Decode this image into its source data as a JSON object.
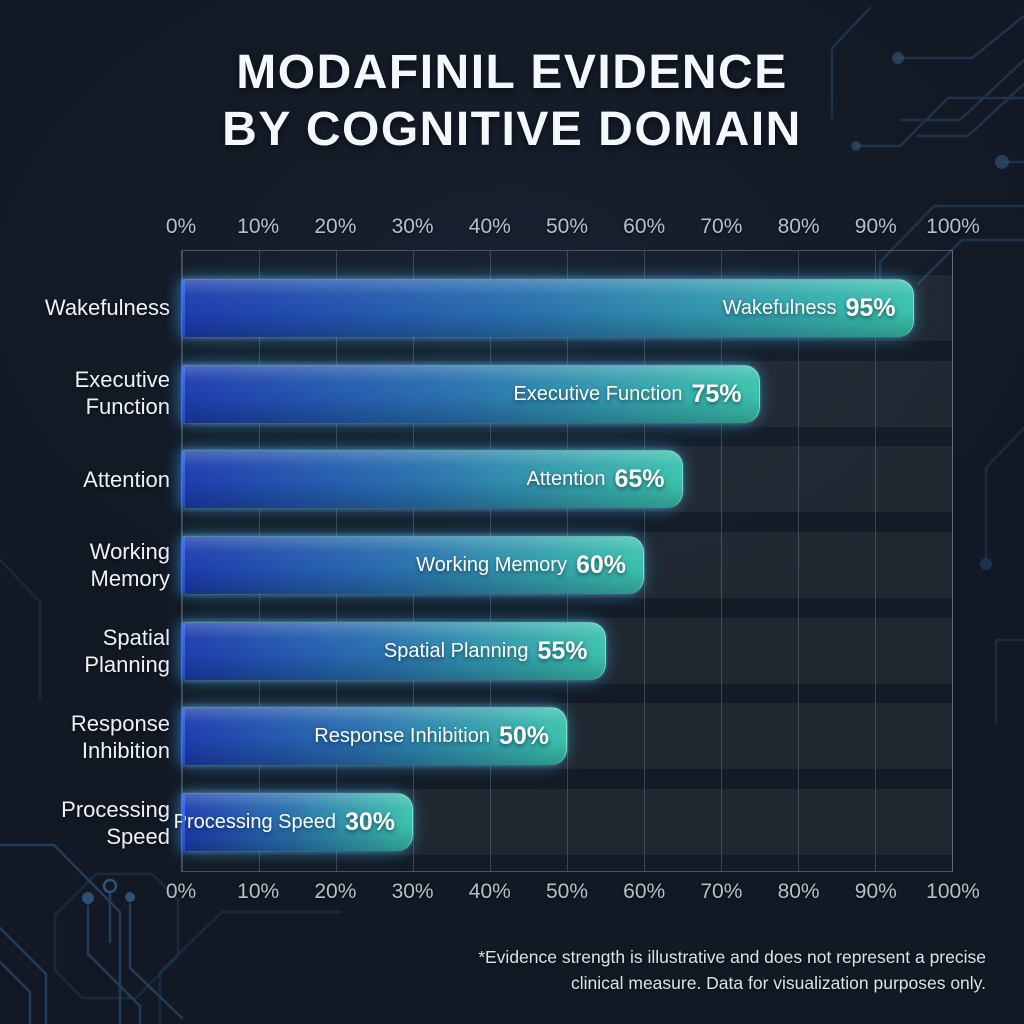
{
  "title": {
    "line1": "MODAFINIL EVIDENCE",
    "line2": "BY COGNITIVE DOMAIN"
  },
  "chart_data": {
    "type": "bar",
    "orientation": "horizontal",
    "title": "MODAFINIL EVIDENCE BY COGNITIVE DOMAIN",
    "categories": [
      "Wakefulness",
      "Executive Function",
      "Attention",
      "Working Memory",
      "Spatial Planning",
      "Response Inhibition",
      "Processing Speed"
    ],
    "values": [
      95,
      75,
      65,
      60,
      55,
      50,
      30
    ],
    "value_suffix": "%",
    "category_label_lines": [
      [
        "Wakefulness"
      ],
      [
        "Executive",
        "Function"
      ],
      [
        "Attention"
      ],
      [
        "Working",
        "Memory"
      ],
      [
        "Spatial",
        "Planning"
      ],
      [
        "Response",
        "Inhibition"
      ],
      [
        "Processing",
        "Speed"
      ]
    ],
    "xlabel": "",
    "ylabel": "",
    "xlim": [
      0,
      100
    ],
    "x_ticks": [
      "0%",
      "10%",
      "20%",
      "30%",
      "40%",
      "50%",
      "60%",
      "70%",
      "80%",
      "90%",
      "100%"
    ],
    "grid": true,
    "legend": "none",
    "axis_position": "top-and-bottom",
    "bar_value_labels_inside": true
  },
  "footnote": {
    "line1": "*Evidence strength is illustrative and does not represent a precise",
    "line2": "clinical measure. Data for visualization purposes only."
  },
  "colors": {
    "background": "#121924",
    "bar_gradient_start": "#1d3cae",
    "bar_gradient_mid": "#2a72ae",
    "bar_gradient_end": "#3bc2ac",
    "bar_rim": "#7cf0d8",
    "bar_left_edge": "#3a66f2",
    "bar_glow": "#48e2c9",
    "title_text": "#f5f8fb",
    "axis_text": "#b7bfca",
    "category_text": "#eef1f6",
    "bar_text": "#ffffff",
    "grid_line": "rgba(173,188,208,0.25)",
    "plot_border": "rgba(173,188,208,0.35)",
    "row_track": "rgba(255,255,255,0.055)",
    "footnote_text": "#dde2e9",
    "circuit_line": "#2b5580"
  }
}
